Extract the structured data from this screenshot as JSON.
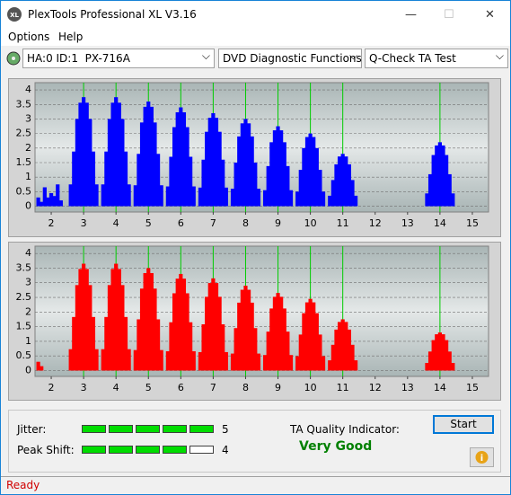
{
  "window": {
    "title": "PlexTools Professional XL V3.16"
  },
  "menu": [
    "Options",
    "Help"
  ],
  "toolbar": {
    "drive": "HA:0 ID:1  PX-716A",
    "function": "DVD Diagnostic Functions",
    "test": "Q-Check TA Test"
  },
  "chart_data": [
    {
      "type": "bar",
      "color": "#0000ff",
      "marker_color": "#00cc00",
      "grid": true,
      "xlim": [
        1.5,
        15.5
      ],
      "ylim": [
        -0.2,
        4.25
      ],
      "xticks": [
        2,
        3,
        4,
        5,
        6,
        7,
        8,
        9,
        10,
        11,
        12,
        13,
        14,
        15
      ],
      "yticks": [
        0,
        0.5,
        1,
        1.5,
        2,
        2.5,
        3,
        3.5,
        4
      ],
      "markers": [
        3,
        4,
        5,
        6,
        7,
        8,
        9,
        10,
        11,
        14
      ],
      "x": [
        1.6,
        1.7,
        1.8,
        1.9,
        2,
        2.1,
        2.2,
        2.3,
        2.6,
        2.7,
        2.8,
        2.9,
        3,
        3.1,
        3.2,
        3.3,
        3.4,
        3.6,
        3.7,
        3.8,
        3.9,
        4,
        4.1,
        4.2,
        4.3,
        4.4,
        4.6,
        4.7,
        4.8,
        4.9,
        5,
        5.1,
        5.2,
        5.3,
        5.4,
        5.6,
        5.7,
        5.8,
        5.9,
        6,
        6.1,
        6.2,
        6.3,
        6.4,
        6.6,
        6.7,
        6.8,
        6.9,
        7,
        7.1,
        7.2,
        7.3,
        7.4,
        7.6,
        7.7,
        7.8,
        7.9,
        8,
        8.1,
        8.2,
        8.3,
        8.4,
        8.6,
        8.7,
        8.8,
        8.9,
        9,
        9.1,
        9.2,
        9.3,
        9.4,
        9.6,
        9.7,
        9.8,
        9.9,
        10,
        10.1,
        10.2,
        10.3,
        10.4,
        10.6,
        10.7,
        10.8,
        10.9,
        11,
        11.1,
        11.2,
        11.3,
        11.4,
        13.6,
        13.7,
        13.8,
        13.9,
        14,
        14.1,
        14.2,
        14.3,
        14.4
      ],
      "values": [
        0.3,
        0.15,
        0.65,
        0.3,
        0.45,
        0.35,
        0.75,
        0.2,
        0.75,
        1.88,
        3,
        3.56,
        3.75,
        3.56,
        3,
        1.88,
        0.75,
        0.75,
        1.88,
        3,
        3.56,
        3.75,
        3.56,
        3,
        1.88,
        0.75,
        0.72,
        1.8,
        2.88,
        3.42,
        3.6,
        3.42,
        2.88,
        1.8,
        0.72,
        0.68,
        1.7,
        2.72,
        3.23,
        3.4,
        3.23,
        2.72,
        1.7,
        0.68,
        0.64,
        1.6,
        2.56,
        3.04,
        3.2,
        3.04,
        2.56,
        1.6,
        0.64,
        0.6,
        1.5,
        2.4,
        2.85,
        3,
        2.85,
        2.4,
        1.5,
        0.6,
        0.55,
        1.38,
        2.2,
        2.61,
        2.75,
        2.61,
        2.2,
        1.38,
        0.55,
        0.5,
        1.25,
        2,
        2.38,
        2.5,
        2.38,
        2,
        1.25,
        0.5,
        0.36,
        0.9,
        1.44,
        1.71,
        1.8,
        1.71,
        1.44,
        0.9,
        0.36,
        0.44,
        1.1,
        1.76,
        2.09,
        2.2,
        2.09,
        1.76,
        1.1,
        0.44
      ]
    },
    {
      "type": "bar",
      "color": "#ff0000",
      "marker_color": "#00cc00",
      "grid": true,
      "xlim": [
        1.5,
        15.5
      ],
      "ylim": [
        -0.2,
        4.25
      ],
      "xticks": [
        2,
        3,
        4,
        5,
        6,
        7,
        8,
        9,
        10,
        11,
        12,
        13,
        14,
        15
      ],
      "yticks": [
        0,
        0.5,
        1,
        1.5,
        2,
        2.5,
        3,
        3.5,
        4
      ],
      "markers": [
        3,
        4,
        5,
        6,
        7,
        8,
        9,
        10,
        11,
        14
      ],
      "x": [
        1.6,
        1.7,
        2.6,
        2.7,
        2.8,
        2.9,
        3,
        3.1,
        3.2,
        3.3,
        3.4,
        3.6,
        3.7,
        3.8,
        3.9,
        4,
        4.1,
        4.2,
        4.3,
        4.4,
        4.6,
        4.7,
        4.8,
        4.9,
        5,
        5.1,
        5.2,
        5.3,
        5.4,
        5.6,
        5.7,
        5.8,
        5.9,
        6,
        6.1,
        6.2,
        6.3,
        6.4,
        6.6,
        6.7,
        6.8,
        6.9,
        7,
        7.1,
        7.2,
        7.3,
        7.4,
        7.6,
        7.7,
        7.8,
        7.9,
        8,
        8.1,
        8.2,
        8.3,
        8.4,
        8.6,
        8.7,
        8.8,
        8.9,
        9,
        9.1,
        9.2,
        9.3,
        9.4,
        9.6,
        9.7,
        9.8,
        9.9,
        10,
        10.1,
        10.2,
        10.3,
        10.4,
        10.6,
        10.7,
        10.8,
        10.9,
        11,
        11.1,
        11.2,
        11.3,
        11.4,
        13.6,
        13.7,
        13.8,
        13.9,
        14,
        14.1,
        14.2,
        14.3,
        14.4
      ],
      "values": [
        0.3,
        0.15,
        0.73,
        1.83,
        2.92,
        3.47,
        3.65,
        3.47,
        2.92,
        1.83,
        0.73,
        0.73,
        1.83,
        2.92,
        3.47,
        3.65,
        3.47,
        2.92,
        1.83,
        0.73,
        0.7,
        1.75,
        2.8,
        3.33,
        3.5,
        3.33,
        2.8,
        1.75,
        0.7,
        0.66,
        1.65,
        2.64,
        3.14,
        3.3,
        3.14,
        2.64,
        1.65,
        0.66,
        0.63,
        1.58,
        2.52,
        2.99,
        3.15,
        2.99,
        2.52,
        1.58,
        0.63,
        0.58,
        1.45,
        2.32,
        2.76,
        2.9,
        2.76,
        2.32,
        1.45,
        0.58,
        0.53,
        1.33,
        2.12,
        2.52,
        2.65,
        2.52,
        2.12,
        1.33,
        0.53,
        0.49,
        1.23,
        1.96,
        2.33,
        2.45,
        2.33,
        1.96,
        1.23,
        0.49,
        0.35,
        0.88,
        1.4,
        1.66,
        1.75,
        1.66,
        1.4,
        0.88,
        0.35,
        0.26,
        0.65,
        1.04,
        1.24,
        1.3,
        1.24,
        1.04,
        0.65,
        0.26
      ]
    }
  ],
  "results": {
    "jitter": {
      "label": "Jitter:",
      "value": 5
    },
    "peak_shift": {
      "label": "Peak Shift:",
      "value": 4
    },
    "quality_label": "TA Quality Indicator:",
    "quality": "Very Good"
  },
  "buttons": {
    "start": "Start"
  },
  "status": "Ready"
}
